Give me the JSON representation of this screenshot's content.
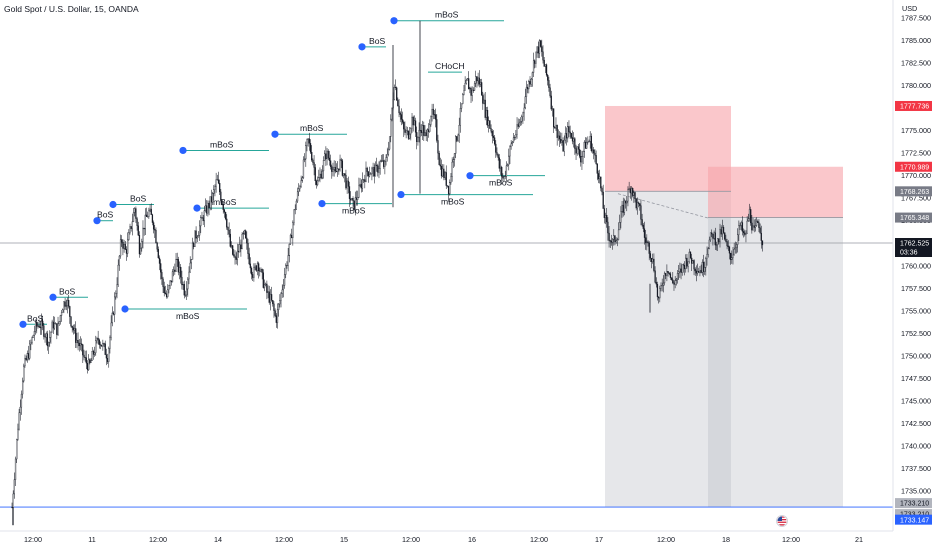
{
  "header": {
    "title": "Gold Spot / U.S. Dollar, 15, OANDA",
    "currency": "USD"
  },
  "chart_data": {
    "type": "candlestick",
    "symbol": "Gold Spot / U.S. Dollar",
    "interval": "15",
    "source": "OANDA",
    "ylim": [
      1731.0,
      1789.5
    ],
    "y_ticks": [
      "1787.500",
      "1785.000",
      "1782.500",
      "1780.000",
      "1777.500",
      "1775.000",
      "1772.500",
      "1770.000",
      "1767.500",
      "1765.000",
      "1762.500",
      "1760.000",
      "1757.500",
      "1755.000",
      "1752.500",
      "1750.000",
      "1747.500",
      "1745.000",
      "1742.500",
      "1740.000",
      "1737.500",
      "1735.000"
    ],
    "x_ticks": [
      "12:00",
      "11",
      "12:00",
      "14",
      "12:00",
      "15",
      "12:00",
      "16",
      "12:00",
      "17",
      "12:00",
      "18",
      "12:00",
      "21"
    ],
    "price_path": [
      [
        0,
        1733.2
      ],
      [
        0.5,
        1742.0
      ],
      [
        1,
        1748.5
      ],
      [
        1.5,
        1750.5
      ],
      [
        2,
        1753.0
      ],
      [
        2.4,
        1753.6
      ],
      [
        2.8,
        1752.8
      ],
      [
        3.2,
        1751.5
      ],
      [
        3.6,
        1753.6
      ],
      [
        4.0,
        1752.8
      ],
      [
        4.4,
        1755.5
      ],
      [
        4.8,
        1756.3
      ],
      [
        5.2,
        1753.8
      ],
      [
        5.6,
        1752.0
      ],
      [
        6.0,
        1751.0
      ],
      [
        6.4,
        1749.5
      ],
      [
        6.8,
        1748.8
      ],
      [
        7.2,
        1750.5
      ],
      [
        7.6,
        1752.0
      ],
      [
        8.0,
        1751.0
      ],
      [
        8.4,
        1750.0
      ],
      [
        8.8,
        1754.0
      ],
      [
        9.2,
        1758.0
      ],
      [
        9.6,
        1763.0
      ],
      [
        10.0,
        1761.5
      ],
      [
        10.4,
        1764.0
      ],
      [
        10.8,
        1766.5
      ],
      [
        11.2,
        1762.0
      ],
      [
        11.6,
        1764.5
      ],
      [
        12.0,
        1766.0
      ],
      [
        12.4,
        1765.0
      ],
      [
        12.8,
        1762.0
      ],
      [
        13.2,
        1758.0
      ],
      [
        13.6,
        1756.5
      ],
      [
        14.0,
        1758.5
      ],
      [
        14.4,
        1760.5
      ],
      [
        14.8,
        1759.0
      ],
      [
        15.2,
        1757.0
      ],
      [
        15.6,
        1760.0
      ],
      [
        16.0,
        1763.0
      ],
      [
        16.4,
        1764.0
      ],
      [
        16.8,
        1765.5
      ],
      [
        17.2,
        1766.5
      ],
      [
        17.6,
        1767.5
      ],
      [
        18.0,
        1769.5
      ],
      [
        18.4,
        1767.5
      ],
      [
        18.8,
        1765.5
      ],
      [
        19.2,
        1762.0
      ],
      [
        19.6,
        1760.5
      ],
      [
        20.0,
        1762.0
      ],
      [
        20.4,
        1763.5
      ],
      [
        20.8,
        1761.0
      ],
      [
        21.2,
        1759.0
      ],
      [
        21.6,
        1760.5
      ],
      [
        22.0,
        1758.5
      ],
      [
        22.4,
        1757.0
      ],
      [
        22.8,
        1756.0
      ],
      [
        23.2,
        1754.0
      ],
      [
        23.6,
        1756.5
      ],
      [
        24.0,
        1759.5
      ],
      [
        24.4,
        1762.0
      ],
      [
        24.8,
        1766.0
      ],
      [
        25.2,
        1768.5
      ],
      [
        25.6,
        1771.0
      ],
      [
        26.0,
        1774.0
      ],
      [
        26.4,
        1772.0
      ],
      [
        26.8,
        1769.0
      ],
      [
        27.2,
        1770.5
      ],
      [
        27.6,
        1772.5
      ],
      [
        28.0,
        1771.5
      ],
      [
        28.4,
        1770.0
      ],
      [
        28.8,
        1771.5
      ],
      [
        29.2,
        1770.0
      ],
      [
        29.6,
        1768.0
      ],
      [
        30.0,
        1766.5
      ],
      [
        30.4,
        1768.0
      ],
      [
        30.8,
        1769.5
      ],
      [
        31.2,
        1770.5
      ],
      [
        31.6,
        1770.5
      ],
      [
        32.0,
        1770.5
      ],
      [
        32.4,
        1771.5
      ],
      [
        32.8,
        1771.0
      ],
      [
        33.2,
        1774.5
      ],
      [
        33.6,
        1780.5
      ],
      [
        34.0,
        1777.5
      ],
      [
        34.4,
        1775.0
      ],
      [
        34.8,
        1774.5
      ],
      [
        35.2,
        1776.5
      ],
      [
        35.6,
        1774.0
      ],
      [
        36.0,
        1775.5
      ],
      [
        36.4,
        1774.0
      ],
      [
        36.8,
        1777.0
      ],
      [
        37.2,
        1776.0
      ],
      [
        37.6,
        1771.0
      ],
      [
        38.0,
        1770.0
      ],
      [
        38.4,
        1768.5
      ],
      [
        38.8,
        1772.5
      ],
      [
        39.2,
        1775.0
      ],
      [
        39.6,
        1778.5
      ],
      [
        40.0,
        1780.5
      ],
      [
        40.4,
        1779.0
      ],
      [
        40.8,
        1781.0
      ],
      [
        41.2,
        1780.0
      ],
      [
        41.6,
        1777.0
      ],
      [
        42.0,
        1775.5
      ],
      [
        42.4,
        1774.0
      ],
      [
        42.8,
        1771.0
      ],
      [
        43.2,
        1769.5
      ],
      [
        43.6,
        1772.0
      ],
      [
        44.0,
        1774.0
      ],
      [
        44.4,
        1775.0
      ],
      [
        44.8,
        1776.5
      ],
      [
        45.2,
        1779.5
      ],
      [
        45.6,
        1781.0
      ],
      [
        46.0,
        1783.5
      ],
      [
        46.4,
        1784.5
      ],
      [
        46.8,
        1782.0
      ],
      [
        47.2,
        1780.0
      ],
      [
        47.6,
        1776.0
      ],
      [
        48.0,
        1774.5
      ],
      [
        48.4,
        1773.0
      ],
      [
        48.8,
        1775.0
      ],
      [
        49.2,
        1774.5
      ],
      [
        49.6,
        1773.0
      ],
      [
        50.0,
        1772.0
      ],
      [
        50.4,
        1773.5
      ],
      [
        50.8,
        1774.0
      ],
      [
        51.2,
        1772.0
      ],
      [
        51.6,
        1770.0
      ],
      [
        52.0,
        1766.0
      ],
      [
        52.4,
        1763.5
      ],
      [
        52.8,
        1762.5
      ],
      [
        53.2,
        1763.5
      ],
      [
        53.6,
        1766.0
      ],
      [
        54.0,
        1767.5
      ],
      [
        54.4,
        1769.0
      ],
      [
        54.8,
        1767.0
      ],
      [
        55.2,
        1766.0
      ],
      [
        55.6,
        1763.0
      ],
      [
        56.0,
        1762.0
      ],
      [
        56.4,
        1760.0
      ],
      [
        56.8,
        1756.0
      ],
      [
        57.2,
        1758.5
      ],
      [
        57.6,
        1760.0
      ],
      [
        58.0,
        1758.0
      ],
      [
        58.4,
        1758.5
      ],
      [
        58.8,
        1759.5
      ],
      [
        59.2,
        1760.5
      ],
      [
        59.6,
        1761.0
      ],
      [
        60.0,
        1760.0
      ],
      [
        60.4,
        1759.5
      ],
      [
        60.8,
        1760.0
      ],
      [
        61.2,
        1762.5
      ],
      [
        61.6,
        1763.5
      ],
      [
        62.0,
        1762.5
      ],
      [
        62.4,
        1764.0
      ],
      [
        62.8,
        1762.0
      ],
      [
        63.2,
        1761.0
      ],
      [
        63.6,
        1762.5
      ],
      [
        64.0,
        1764.5
      ],
      [
        64.4,
        1763.0
      ],
      [
        64.8,
        1766.0
      ],
      [
        65.2,
        1763.5
      ],
      [
        65.6,
        1765.0
      ],
      [
        66.0,
        1762.5
      ]
    ],
    "annotations": [
      {
        "text": "BoS",
        "level": 1753.5
      },
      {
        "text": "BoS",
        "level": 1756.5
      },
      {
        "text": "BoS",
        "level": 1765.0
      },
      {
        "text": "BoS",
        "level": 1766.8
      },
      {
        "text": "BoS",
        "level": 1784.3
      },
      {
        "text": "mBoS",
        "level": 1772.8
      },
      {
        "text": "mBoS",
        "level": 1766.4
      },
      {
        "text": "mBoS",
        "level": 1755.2
      },
      {
        "text": "mBoS",
        "level": 1774.6
      },
      {
        "text": "mBoS",
        "level": 1766.9
      },
      {
        "text": "mBoS",
        "level": 1787.2
      },
      {
        "text": "mBoS",
        "level": 1767.9
      },
      {
        "text": "mBoS",
        "level": 1770.0
      },
      {
        "text": "CHoCH",
        "level": 1781.5
      }
    ],
    "price_labels": [
      {
        "value": "1777.736",
        "color": "#f23645",
        "text_color": "#ffffff"
      },
      {
        "value": "1770.989",
        "color": "#f23645",
        "text_color": "#ffffff"
      },
      {
        "value": "1768.263",
        "color": "#787b86",
        "text_color": "#ffffff"
      },
      {
        "value": "1765.348",
        "color": "#787b86",
        "text_color": "#ffffff"
      },
      {
        "value": "1762.525",
        "countdown": "03:36",
        "color": "#131722",
        "text_color": "#ffffff"
      },
      {
        "value": "1733.210",
        "color": "#b2b5be",
        "text_color": "#131722"
      },
      {
        "value": "1733.210",
        "color": "#b2b5be",
        "text_color": "#131722"
      },
      {
        "value": "1733.147",
        "color": "#2962ff",
        "text_color": "#ffffff"
      }
    ],
    "colors": {
      "bull": "#ffffff",
      "bear": "#131722",
      "marker": "#2962ff",
      "line": "#26a69a",
      "stop_zone": "#f7a5ab",
      "neutral_zone": "#b2b5be",
      "support": "#2962ff"
    },
    "flag_icon": "us-flag-icon"
  }
}
